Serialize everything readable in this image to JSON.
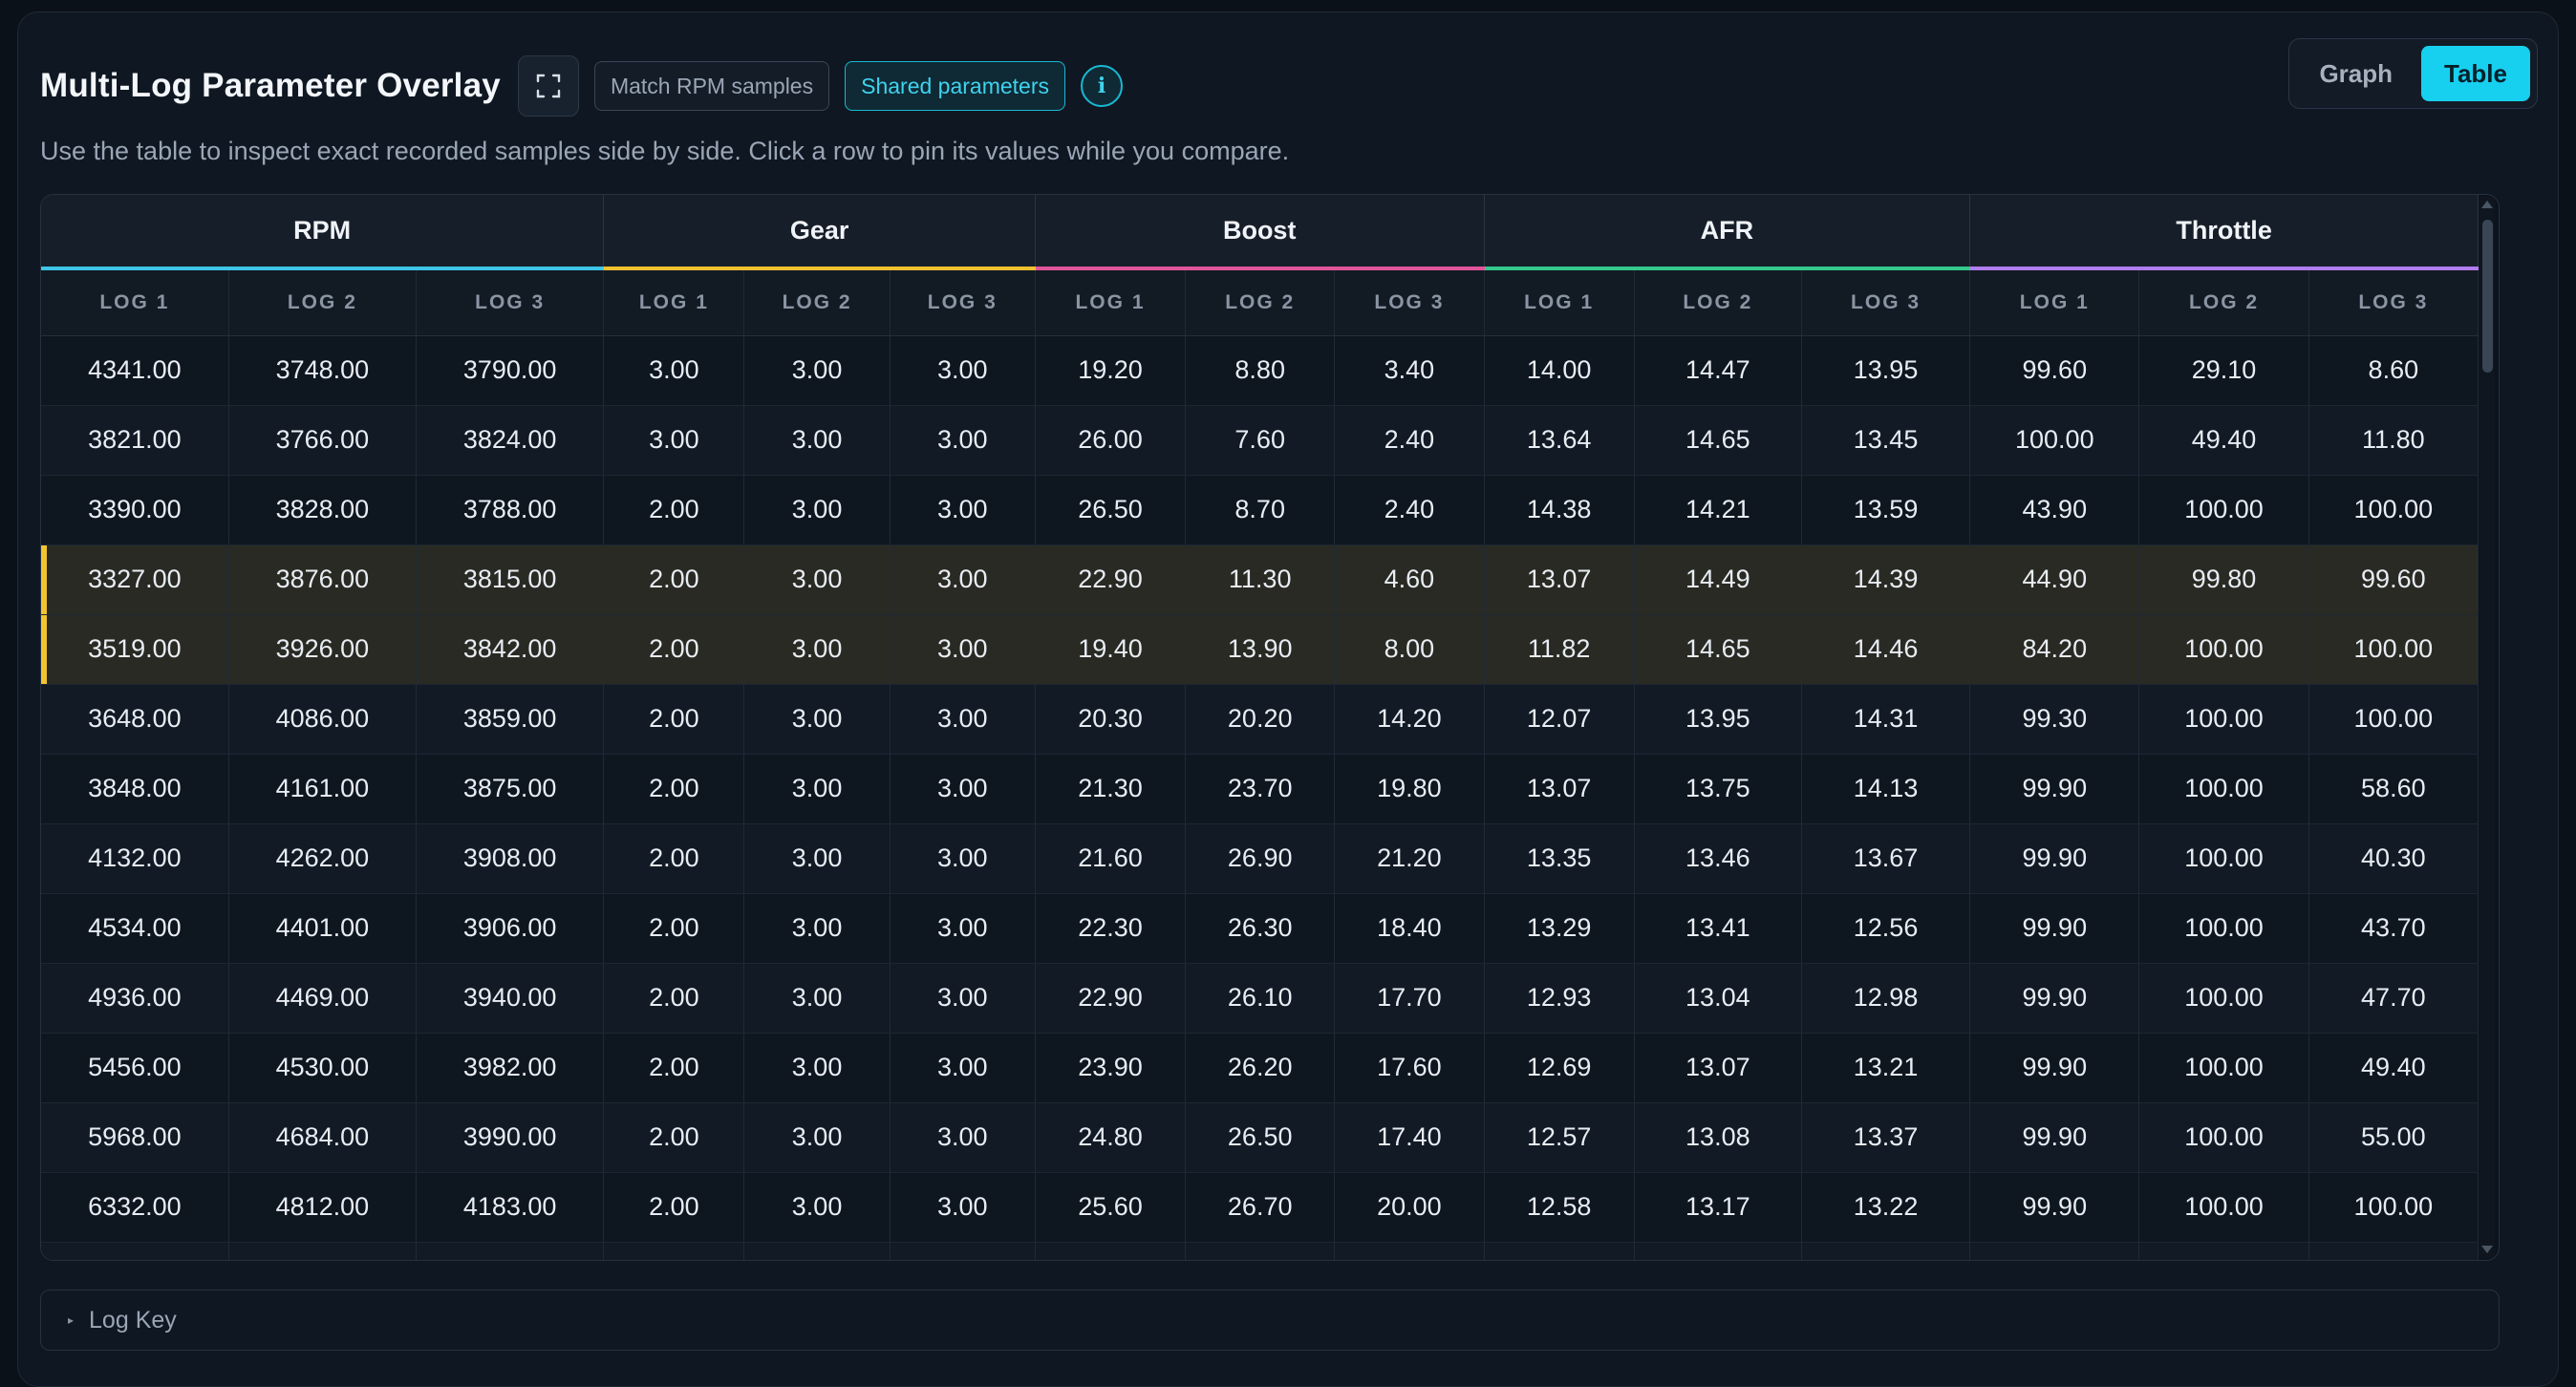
{
  "header": {
    "title": "Multi-Log Parameter Overlay",
    "match_rpm_label": "Match RPM samples",
    "shared_params_label": "Shared parameters",
    "info_label": "i"
  },
  "view_toggle": {
    "graph_label": "Graph",
    "table_label": "Table",
    "selected": "Table"
  },
  "subtitle": "Use the table to inspect exact recorded samples side by side. Click a row to pin its values while you compare.",
  "table": {
    "groups": [
      {
        "name": "RPM",
        "color": "#3ec5e6"
      },
      {
        "name": "Gear",
        "color": "#f2c12e"
      },
      {
        "name": "Boost",
        "color": "#e2559a"
      },
      {
        "name": "AFR",
        "color": "#34c98a"
      },
      {
        "name": "Throttle",
        "color": "#b07cf0"
      }
    ],
    "log_headers": [
      "LOG 1",
      "LOG 2",
      "LOG 3",
      "LOG 1",
      "LOG 2",
      "LOG 3",
      "LOG 1",
      "LOG 2",
      "LOG 3",
      "LOG 1",
      "LOG 2",
      "LOG 3",
      "LOG 1",
      "LOG 2",
      "LOG 3"
    ],
    "pinned_rows": [
      3,
      4
    ],
    "pinned_color": "#f2c530",
    "rows": [
      [
        "4341.00",
        "3748.00",
        "3790.00",
        "3.00",
        "3.00",
        "3.00",
        "19.20",
        "8.80",
        "3.40",
        "14.00",
        "14.47",
        "13.95",
        "99.60",
        "29.10",
        "8.60"
      ],
      [
        "3821.00",
        "3766.00",
        "3824.00",
        "3.00",
        "3.00",
        "3.00",
        "26.00",
        "7.60",
        "2.40",
        "13.64",
        "14.65",
        "13.45",
        "100.00",
        "49.40",
        "11.80"
      ],
      [
        "3390.00",
        "3828.00",
        "3788.00",
        "2.00",
        "3.00",
        "3.00",
        "26.50",
        "8.70",
        "2.40",
        "14.38",
        "14.21",
        "13.59",
        "43.90",
        "100.00",
        "100.00"
      ],
      [
        "3327.00",
        "3876.00",
        "3815.00",
        "2.00",
        "3.00",
        "3.00",
        "22.90",
        "11.30",
        "4.60",
        "13.07",
        "14.49",
        "14.39",
        "44.90",
        "99.80",
        "99.60"
      ],
      [
        "3519.00",
        "3926.00",
        "3842.00",
        "2.00",
        "3.00",
        "3.00",
        "19.40",
        "13.90",
        "8.00",
        "11.82",
        "14.65",
        "14.46",
        "84.20",
        "100.00",
        "100.00"
      ],
      [
        "3648.00",
        "4086.00",
        "3859.00",
        "2.00",
        "3.00",
        "3.00",
        "20.30",
        "20.20",
        "14.20",
        "12.07",
        "13.95",
        "14.31",
        "99.30",
        "100.00",
        "100.00"
      ],
      [
        "3848.00",
        "4161.00",
        "3875.00",
        "2.00",
        "3.00",
        "3.00",
        "21.30",
        "23.70",
        "19.80",
        "13.07",
        "13.75",
        "14.13",
        "99.90",
        "100.00",
        "58.60"
      ],
      [
        "4132.00",
        "4262.00",
        "3908.00",
        "2.00",
        "3.00",
        "3.00",
        "21.60",
        "26.90",
        "21.20",
        "13.35",
        "13.46",
        "13.67",
        "99.90",
        "100.00",
        "40.30"
      ],
      [
        "4534.00",
        "4401.00",
        "3906.00",
        "2.00",
        "3.00",
        "3.00",
        "22.30",
        "26.30",
        "18.40",
        "13.29",
        "13.41",
        "12.56",
        "99.90",
        "100.00",
        "43.70"
      ],
      [
        "4936.00",
        "4469.00",
        "3940.00",
        "2.00",
        "3.00",
        "3.00",
        "22.90",
        "26.10",
        "17.70",
        "12.93",
        "13.04",
        "12.98",
        "99.90",
        "100.00",
        "47.70"
      ],
      [
        "5456.00",
        "4530.00",
        "3982.00",
        "2.00",
        "3.00",
        "3.00",
        "23.90",
        "26.20",
        "17.60",
        "12.69",
        "13.07",
        "13.21",
        "99.90",
        "100.00",
        "49.40"
      ],
      [
        "5968.00",
        "4684.00",
        "3990.00",
        "2.00",
        "3.00",
        "3.00",
        "24.80",
        "26.50",
        "17.40",
        "12.57",
        "13.08",
        "13.37",
        "99.90",
        "100.00",
        "55.00"
      ],
      [
        "6332.00",
        "4812.00",
        "4183.00",
        "2.00",
        "3.00",
        "3.00",
        "25.60",
        "26.70",
        "20.00",
        "12.58",
        "13.17",
        "13.22",
        "99.90",
        "100.00",
        "100.00"
      ],
      [
        "",
        "",
        "",
        "",
        "",
        "",
        "",
        "",
        "",
        "",
        "",
        "",
        "",
        "",
        ""
      ]
    ]
  },
  "log_key": {
    "label": "Log Key",
    "caret": "▸"
  }
}
